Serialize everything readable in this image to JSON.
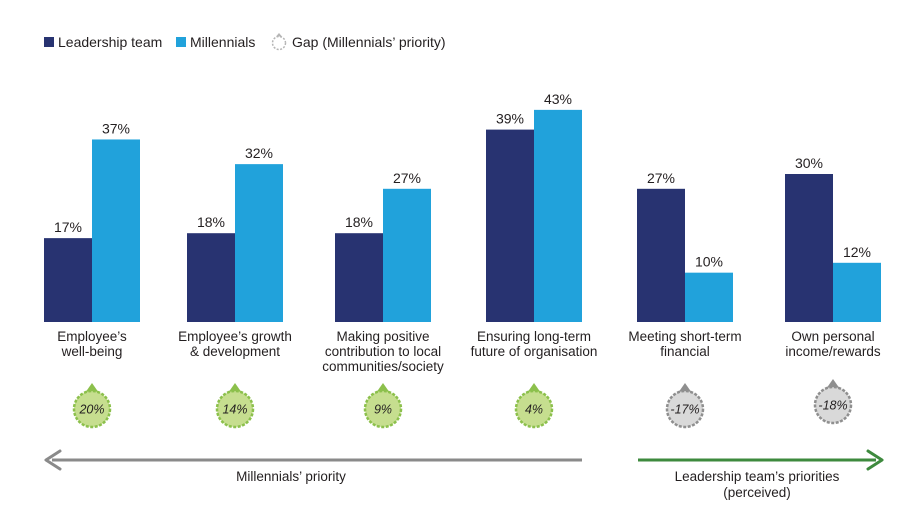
{
  "legend": {
    "leadership": "Leadership team",
    "millennials": "Millennials",
    "gap": "Gap (Millennials’ priority)"
  },
  "colors": {
    "leadership": "#283371",
    "millennials": "#21a2db",
    "gap_positive_fill": "#c6de8f",
    "gap_positive_edge": "#8cc04c",
    "gap_negative_fill": "#d9d9d9",
    "gap_negative_edge": "#8f8f8f",
    "arrow_left": "#8a8a8a",
    "arrow_right": "#3e8a3e"
  },
  "chart_data": {
    "type": "bar",
    "categories": [
      [
        "Employee’s",
        "well-being"
      ],
      [
        "Employee’s growth",
        "& development"
      ],
      [
        "Making positive",
        "contribution to local",
        "communities/society"
      ],
      [
        "Ensuring long-term",
        "future of organisation"
      ],
      [
        "Meeting short-term",
        "financial"
      ],
      [
        "Own personal",
        "income/rewards"
      ]
    ],
    "series": [
      {
        "name": "Leadership team",
        "values": [
          17,
          18,
          18,
          39,
          27,
          30
        ],
        "labels": [
          "17%",
          "18%",
          "18%",
          "39%",
          "27%",
          "30%"
        ]
      },
      {
        "name": "Millennials",
        "values": [
          37,
          32,
          27,
          43,
          10,
          12
        ],
        "labels": [
          "37%",
          "32%",
          "27%",
          "43%",
          "10%",
          "12%"
        ]
      }
    ],
    "gap": {
      "values": [
        20,
        14,
        9,
        4,
        -17,
        -18
      ],
      "labels": [
        "20%",
        "14%",
        "9%",
        "4%",
        "-17%",
        "-18%"
      ]
    },
    "ylim": [
      0,
      45
    ],
    "grid": false,
    "legend_position": "top-left"
  },
  "arrows": {
    "left_label": "Millennials’ priority",
    "right_label_line1": "Leadership team’s priorities",
    "right_label_line2": "(perceived)"
  }
}
